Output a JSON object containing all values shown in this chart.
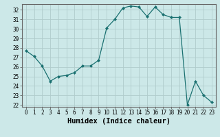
{
  "x": [
    0,
    1,
    2,
    3,
    4,
    5,
    6,
    7,
    8,
    9,
    10,
    11,
    12,
    13,
    14,
    15,
    16,
    17,
    18,
    19,
    20,
    21,
    22,
    23
  ],
  "y": [
    27.7,
    27.1,
    26.1,
    24.5,
    25.0,
    25.1,
    25.4,
    26.1,
    26.1,
    26.7,
    30.1,
    31.0,
    32.2,
    32.4,
    32.3,
    31.3,
    32.3,
    31.5,
    31.2,
    31.2,
    22.0,
    24.5,
    23.0,
    22.3
  ],
  "xlim": [
    -0.5,
    23.5
  ],
  "ylim": [
    21.8,
    32.6
  ],
  "yticks": [
    22,
    23,
    24,
    25,
    26,
    27,
    28,
    29,
    30,
    31,
    32
  ],
  "xticks": [
    0,
    1,
    2,
    3,
    4,
    5,
    6,
    7,
    8,
    9,
    10,
    11,
    12,
    13,
    14,
    15,
    16,
    17,
    18,
    19,
    20,
    21,
    22,
    23
  ],
  "xlabel": "Humidex (Indice chaleur)",
  "line_color": "#1a7070",
  "marker": "D",
  "marker_size": 2.0,
  "bg_color": "#cce8e8",
  "grid_major_color": "#b0cccc",
  "grid_minor_color": "#c4dcdc",
  "tick_label_fontsize": 5.5,
  "xlabel_fontsize": 7.5,
  "spine_color": "#666666"
}
